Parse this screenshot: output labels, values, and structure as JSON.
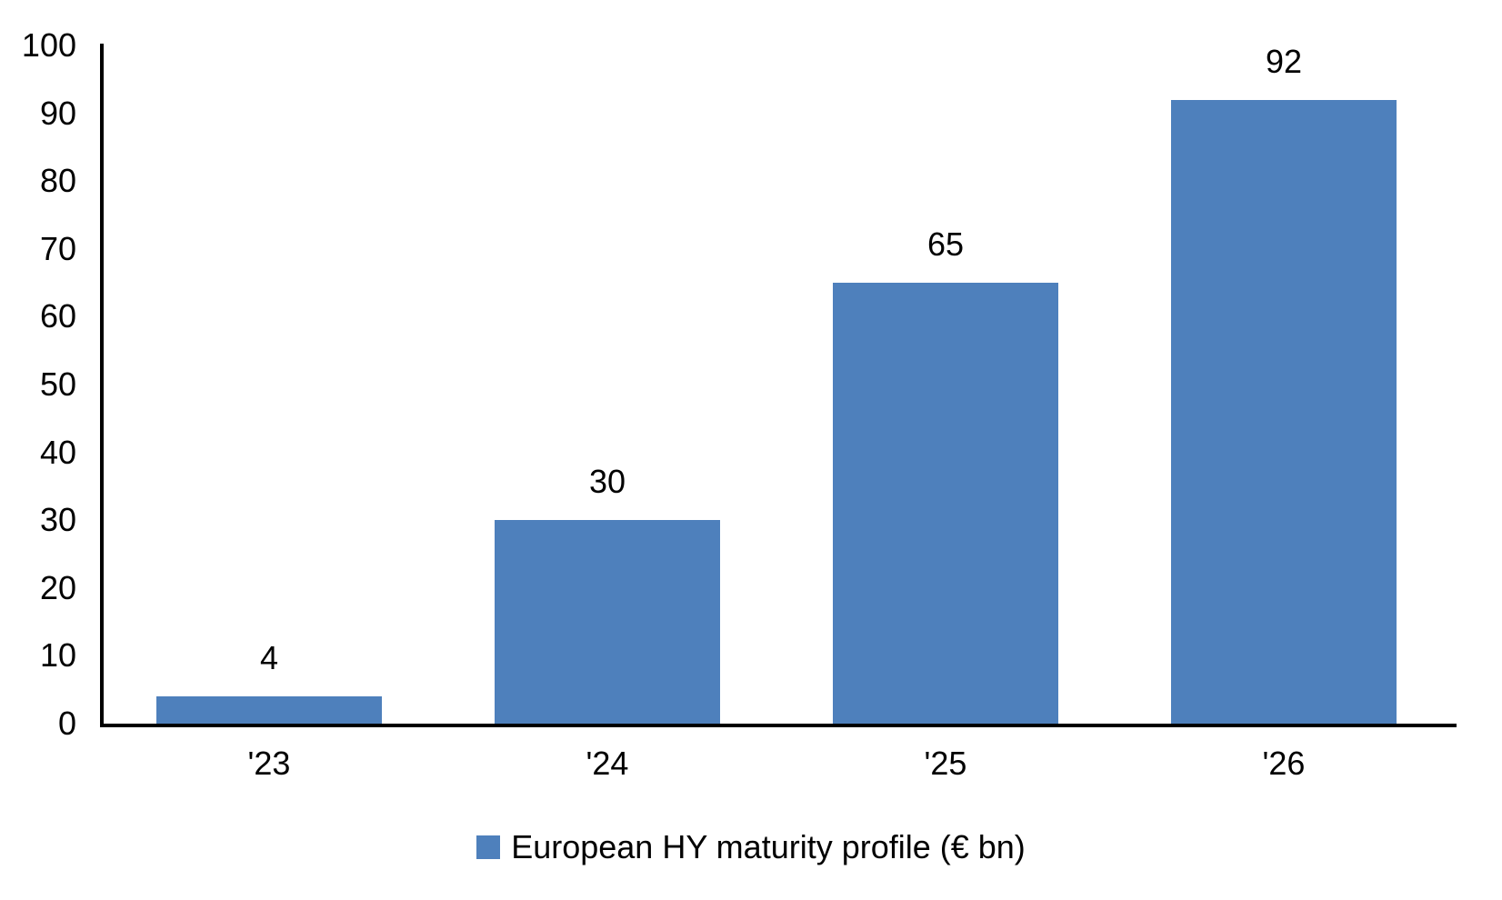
{
  "chart_data": {
    "type": "bar",
    "categories": [
      "'23",
      "'24",
      "'25",
      "'26"
    ],
    "values": [
      4,
      30,
      65,
      92
    ],
    "series_name": "European HY maturity profile (€ bn)",
    "title": "",
    "xlabel": "",
    "ylabel": "",
    "ylim": [
      0,
      100
    ],
    "yticks": [
      0,
      10,
      20,
      30,
      40,
      50,
      60,
      70,
      80,
      90,
      100
    ],
    "data_labels": [
      4,
      30,
      65,
      92
    ],
    "grid": false,
    "legend_position": "bottom",
    "colors": {
      "bar_fill": "#4E80BC",
      "axis_line": "#000000",
      "text": "#000000",
      "background": "#FFFFFF"
    }
  }
}
